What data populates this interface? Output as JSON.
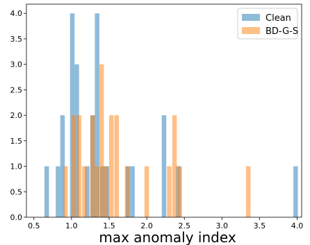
{
  "chart_data": {
    "type": "bar",
    "subtype": "overlaid-histogram",
    "xlabel": "max anomaly index",
    "ylabel": "",
    "xlim": [
      0.4,
      4.06
    ],
    "ylim": [
      0,
      4.18
    ],
    "bin_width": 0.06,
    "xticks": [
      "0.5",
      "1.0",
      "1.5",
      "2.0",
      "2.5",
      "3.0",
      "3.5",
      "4.0"
    ],
    "yticks": [
      "0.0",
      "0.5",
      "1.0",
      "1.5",
      "2.0",
      "2.5",
      "3.0",
      "3.5",
      "4.0"
    ],
    "grid": false,
    "legend_position": "top-right",
    "series": [
      {
        "name": "Clean",
        "color": "#1f77b4",
        "alpha": 0.5,
        "bins": [
          {
            "x": 0.67,
            "value": 1
          },
          {
            "x": 0.82,
            "value": 1
          },
          {
            "x": 0.88,
            "value": 2
          },
          {
            "x": 1.01,
            "value": 4
          },
          {
            "x": 1.07,
            "value": 3
          },
          {
            "x": 1.21,
            "value": 1
          },
          {
            "x": 1.28,
            "value": 2
          },
          {
            "x": 1.34,
            "value": 4
          },
          {
            "x": 1.41,
            "value": 1
          },
          {
            "x": 1.47,
            "value": 1
          },
          {
            "x": 1.75,
            "value": 1
          },
          {
            "x": 1.81,
            "value": 1
          },
          {
            "x": 2.23,
            "value": 2
          },
          {
            "x": 2.42,
            "value": 1
          },
          {
            "x": 3.98,
            "value": 1
          }
        ]
      },
      {
        "name": "BD-G-S",
        "color": "#ff7f0e",
        "alpha": 0.5,
        "bins": [
          {
            "x": 0.92,
            "value": 1
          },
          {
            "x": 1.03,
            "value": 2
          },
          {
            "x": 1.1,
            "value": 2
          },
          {
            "x": 1.17,
            "value": 1
          },
          {
            "x": 1.28,
            "value": 2
          },
          {
            "x": 1.34,
            "value": 1
          },
          {
            "x": 1.4,
            "value": 3
          },
          {
            "x": 1.46,
            "value": 1
          },
          {
            "x": 1.53,
            "value": 2
          },
          {
            "x": 1.6,
            "value": 2
          },
          {
            "x": 1.74,
            "value": 1
          },
          {
            "x": 2.0,
            "value": 1
          },
          {
            "x": 2.3,
            "value": 1
          },
          {
            "x": 2.37,
            "value": 2
          },
          {
            "x": 2.44,
            "value": 1
          },
          {
            "x": 3.35,
            "value": 1
          }
        ]
      }
    ]
  }
}
